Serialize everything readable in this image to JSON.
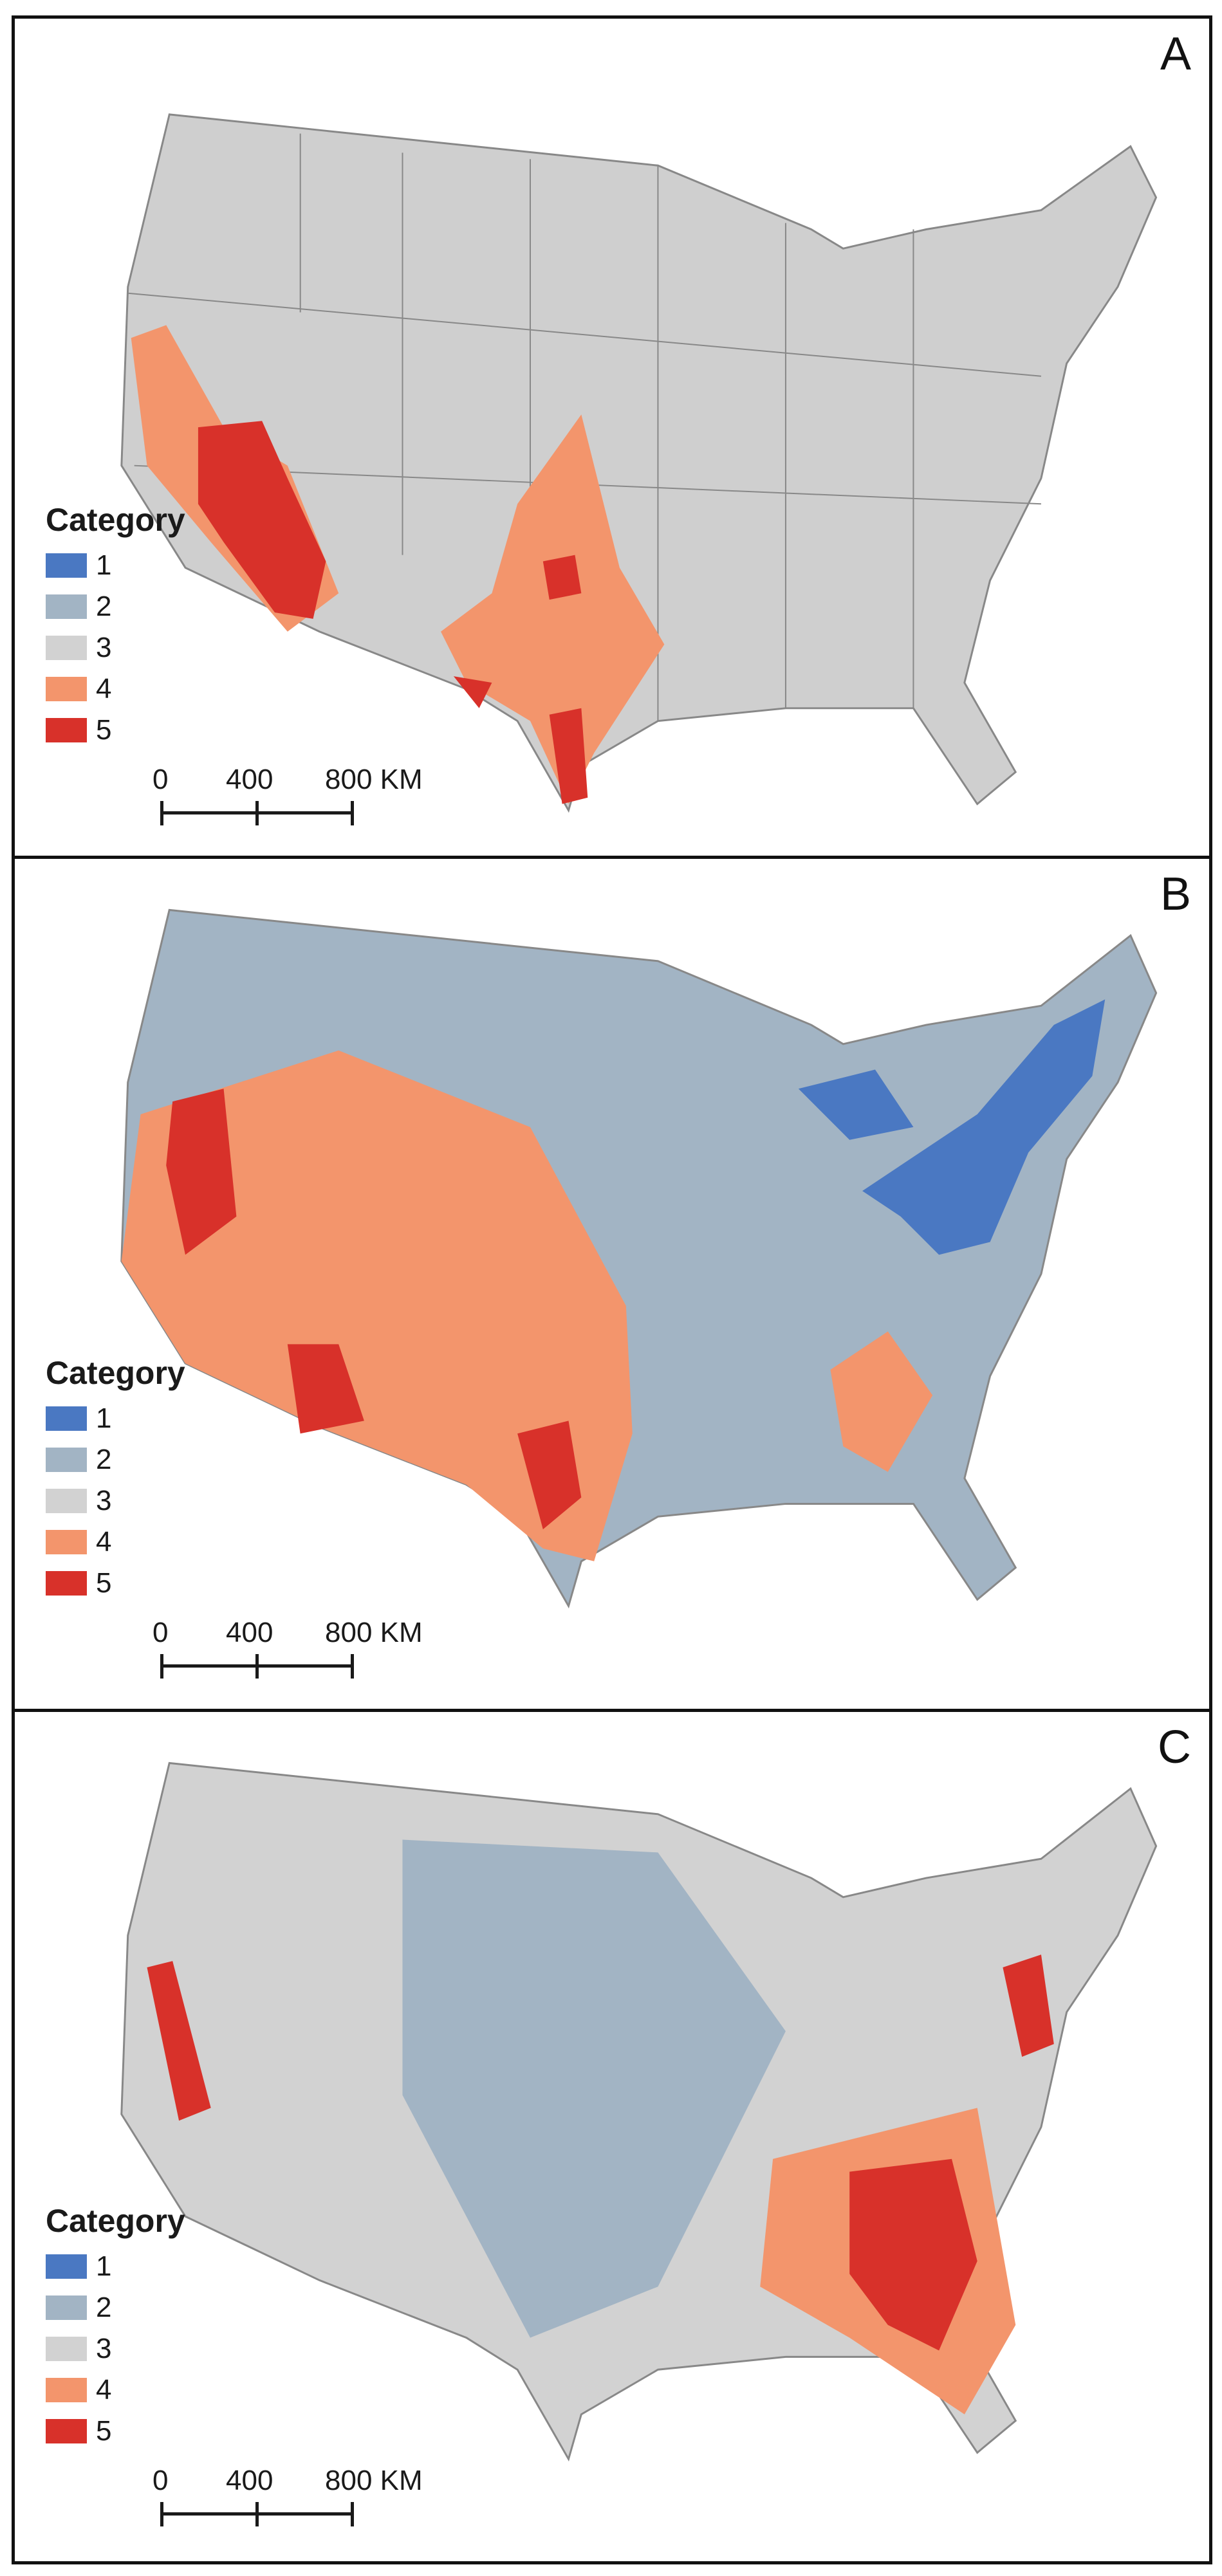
{
  "colors": {
    "cat1": "#4a78c2",
    "cat2": "#a2b4c4",
    "cat3": "#d2d2d2",
    "cat4": "#f3956c",
    "cat5": "#d8312a",
    "border": "#555555"
  },
  "legend": {
    "title": "Category",
    "items": [
      {
        "label": "1",
        "color": "#4a78c2"
      },
      {
        "label": "2",
        "color": "#a2b4c4"
      },
      {
        "label": "3",
        "color": "#d2d2d2"
      },
      {
        "label": "4",
        "color": "#f3956c"
      },
      {
        "label": "5",
        "color": "#d8312a"
      }
    ]
  },
  "scale": {
    "labels": [
      "0",
      "400",
      "800 KM"
    ]
  },
  "panels": [
    {
      "letter": "A"
    },
    {
      "letter": "B"
    },
    {
      "letter": "C"
    }
  ]
}
